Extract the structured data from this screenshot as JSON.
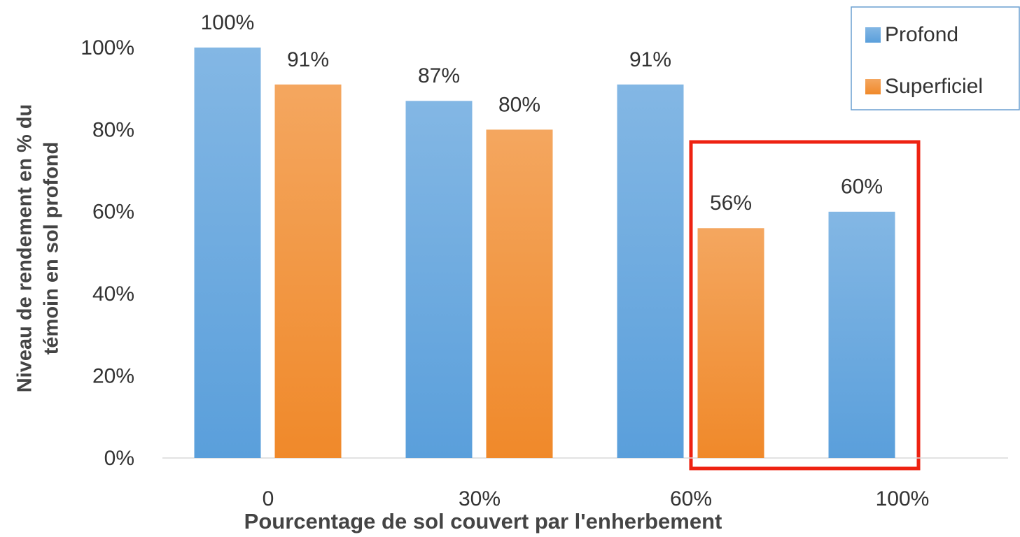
{
  "chart_data": {
    "type": "bar",
    "x_label": "Pourcentage de sol couvert par l'enherbement",
    "y_label": [
      "Niveau de rendement en % du",
      "témoin en sol profond"
    ],
    "categories": [
      "0",
      "30%",
      "60%",
      "100%"
    ],
    "series": [
      {
        "name": "Profond",
        "color": "#5a9fdb",
        "values": [
          100,
          87,
          91,
          60
        ],
        "value_labels": [
          "100%",
          "87%",
          "91%",
          "60%"
        ]
      },
      {
        "name": "Superficiel",
        "color": "#f0892a",
        "values": [
          91,
          80,
          56,
          null
        ],
        "value_labels": [
          "91%",
          "80%",
          "56%",
          null
        ]
      }
    ],
    "ylim": [
      0,
      100
    ],
    "yticks": [
      {
        "value": 0,
        "label": "0%"
      },
      {
        "value": 20,
        "label": "20%"
      },
      {
        "value": 40,
        "label": "40%"
      },
      {
        "value": 60,
        "label": "60%"
      },
      {
        "value": 80,
        "label": "80%"
      },
      {
        "value": 100,
        "label": "100%"
      }
    ],
    "grid": false,
    "legend": "top-right"
  }
}
